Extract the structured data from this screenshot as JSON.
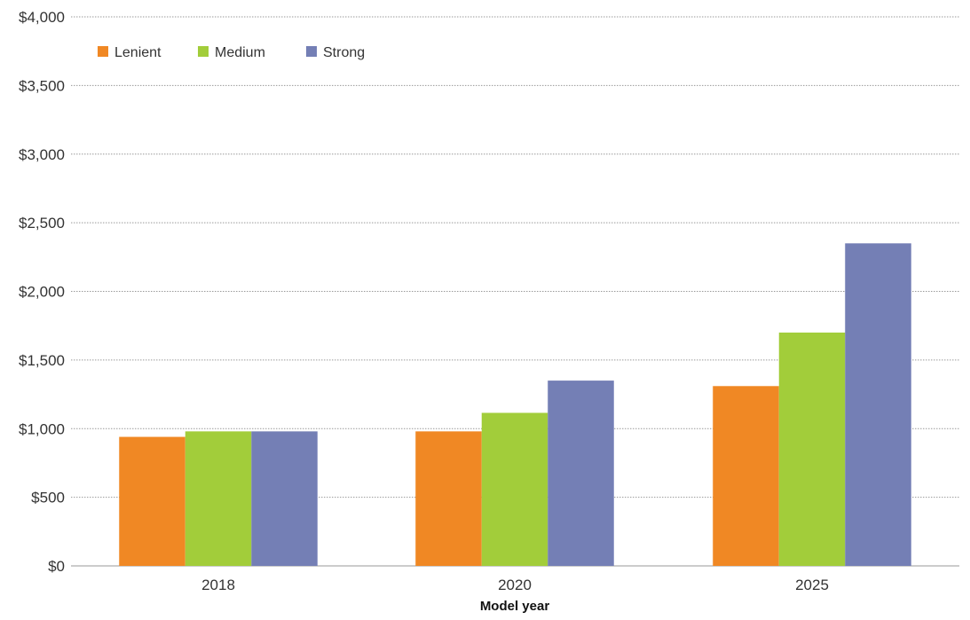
{
  "chart_data": {
    "type": "bar",
    "title": "",
    "xlabel": "Model year",
    "ylabel": "",
    "categories": [
      "2018",
      "2020",
      "2025"
    ],
    "series": [
      {
        "name": "Lenient",
        "color": "#f08824",
        "values": [
          940,
          980,
          1310
        ]
      },
      {
        "name": "Medium",
        "color": "#a2cd3a",
        "values": [
          980,
          1115,
          1700
        ]
      },
      {
        "name": "Strong",
        "color": "#747fb5",
        "values": [
          980,
          1350,
          2350
        ]
      }
    ],
    "ylim": [
      0,
      4000
    ],
    "yticks": [
      0,
      500,
      1000,
      1500,
      2000,
      2500,
      3000,
      3500,
      4000
    ],
    "ytick_labels": [
      "$0",
      "$500",
      "$1,000",
      "$1,500",
      "$2,000",
      "$2,500",
      "$3,000",
      "$3,500",
      "$4,000"
    ],
    "grid": true,
    "legend_position": "top-left"
  }
}
